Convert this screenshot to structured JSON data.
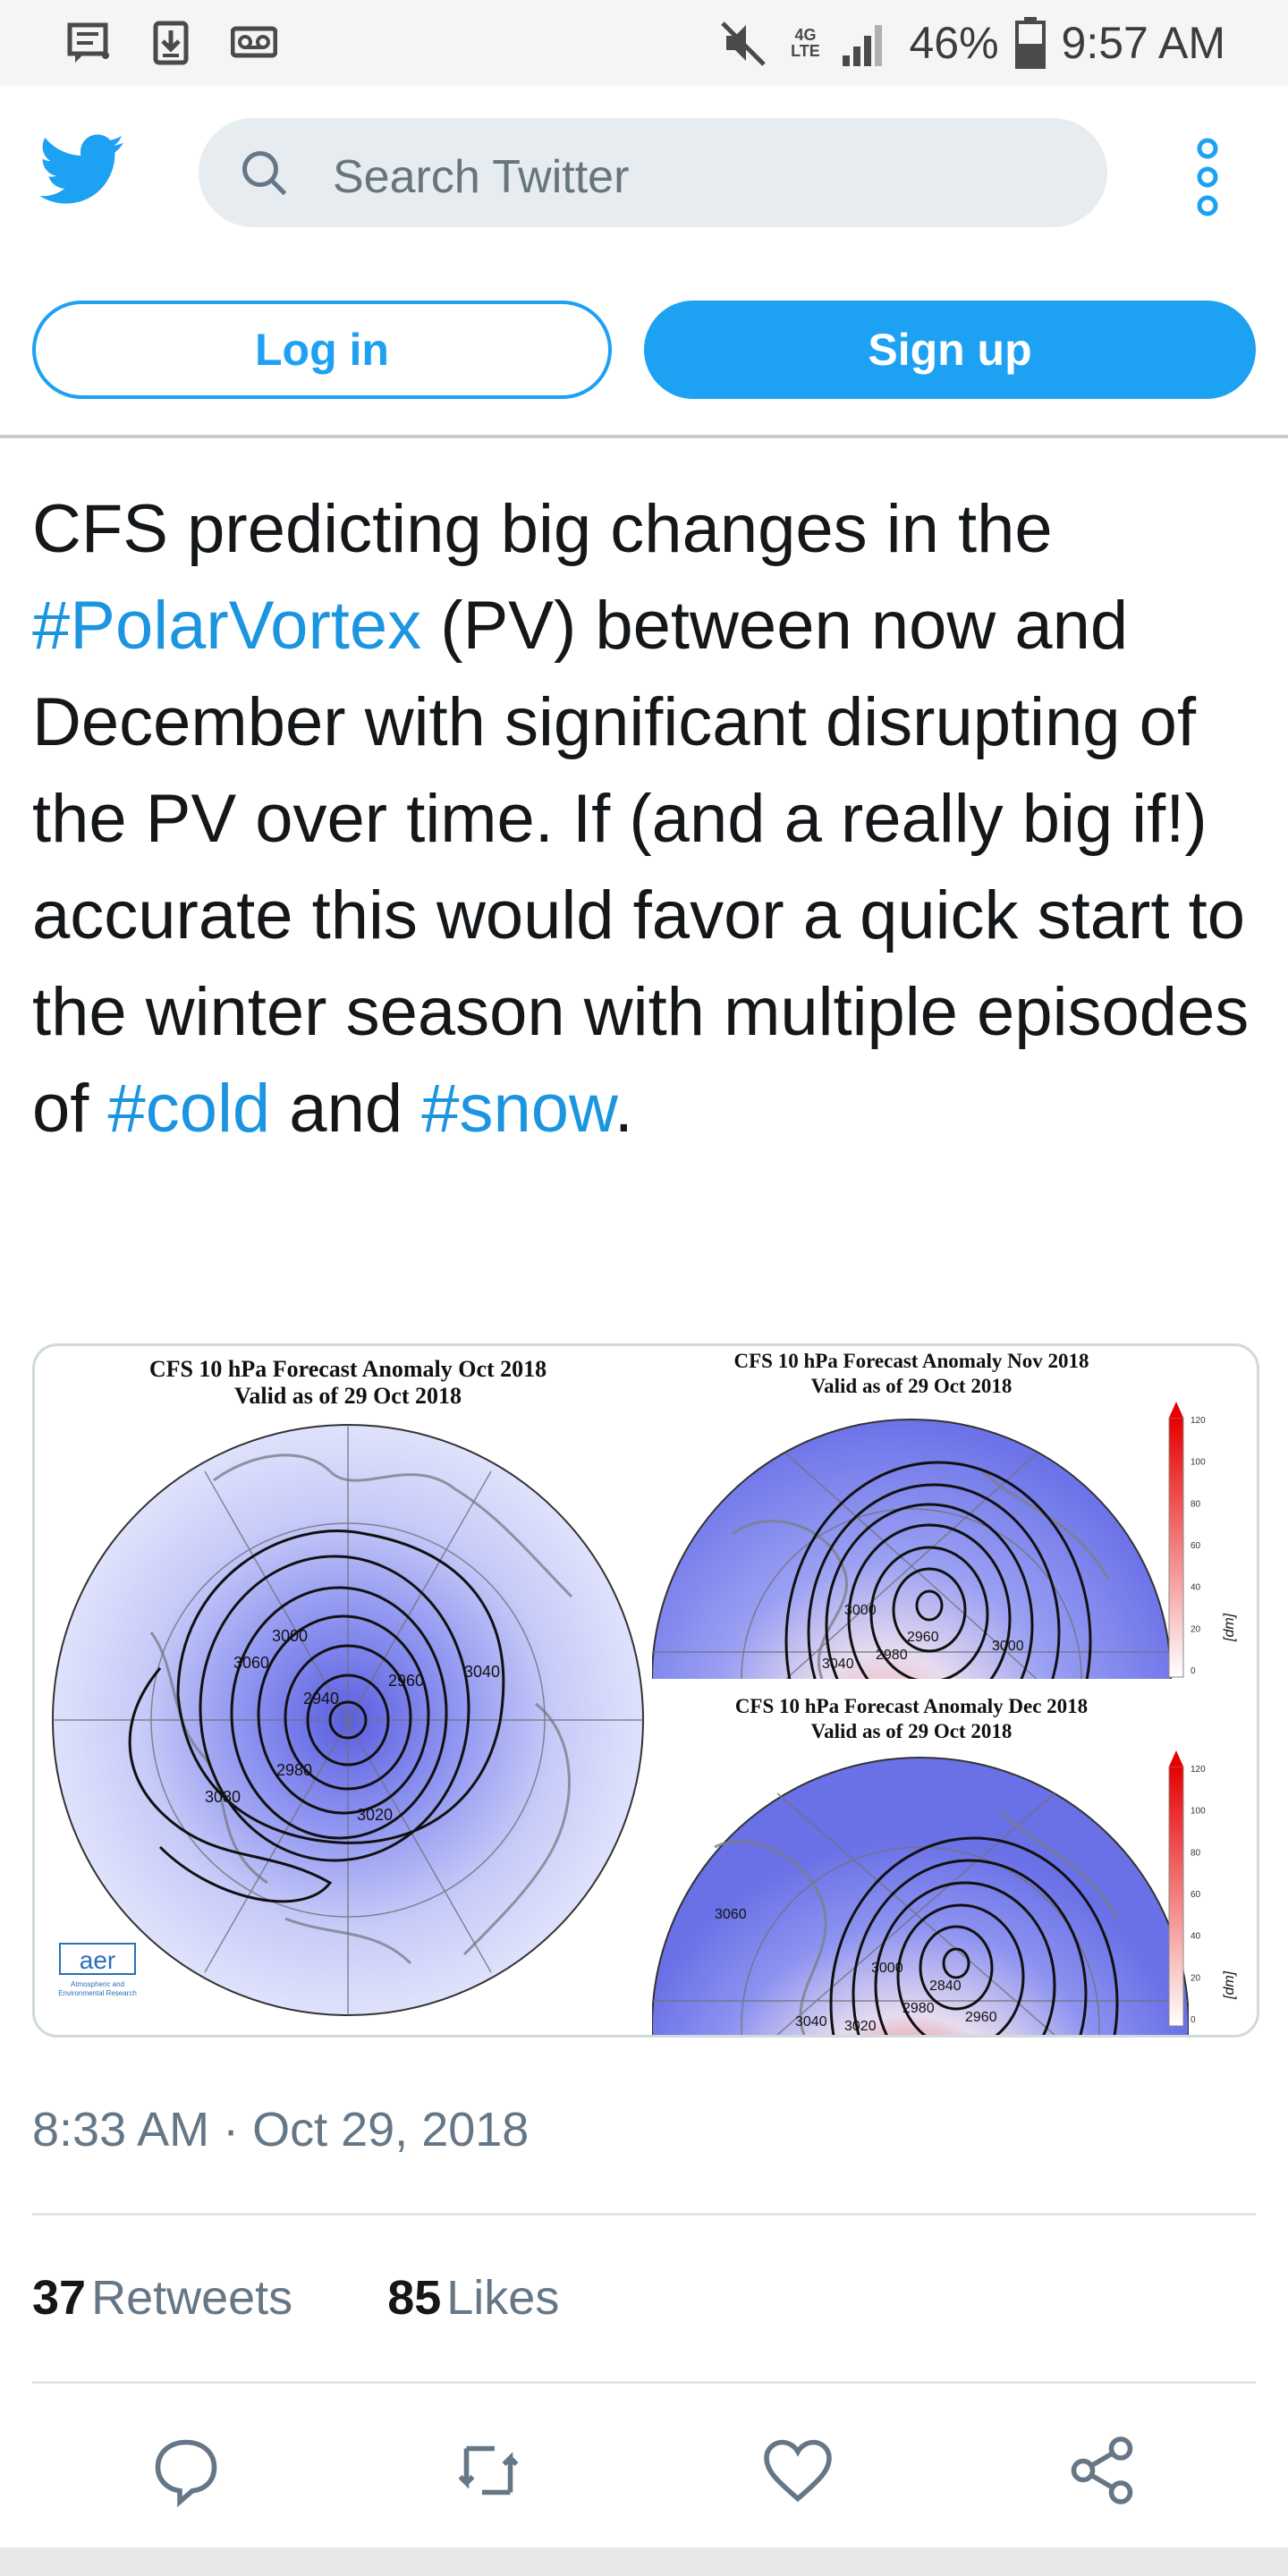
{
  "status_bar": {
    "battery": "46%",
    "time": "9:57 AM",
    "network_label": "4G LTE",
    "icons_left": [
      "message-icon",
      "download-icon",
      "voicemail-icon"
    ],
    "icons_right": [
      "mute-icon",
      "network-icon",
      "signal-icon",
      "battery-icon"
    ]
  },
  "header": {
    "search_placeholder": "Search Twitter",
    "icons": [
      "twitter-bird-icon",
      "search-icon",
      "more-vertical-icon"
    ]
  },
  "auth": {
    "login_label": "Log in",
    "signup_label": "Sign up"
  },
  "tweet": {
    "text_1": "CFS predicting big changes in the ",
    "tag_1": "#PolarVortex",
    "text_2": " (PV) between now and December with significant disrupting of the PV over time.  If (and a really big if!) accurate this would favor a quick start to the winter season with multiple episodes of ",
    "tag_2": "#cold",
    "text_3": " and ",
    "tag_3": "#snow",
    "text_4": ".",
    "media": {
      "left_title_1": "CFS 10 hPa Forecast Anomaly Oct 2018",
      "left_title_2": "Valid as of 29 Oct 2018",
      "top_right_title_1": "CFS 10 hPa Forecast Anomaly Nov 2018",
      "top_right_title_2": "Valid as of 29 Oct 2018",
      "bottom_right_title_1": "CFS 10 hPa Forecast Anomaly Dec 2018",
      "bottom_right_title_2": "Valid as of 29 Oct 2018",
      "logo": "aer",
      "logo_sub_1": "Atmospheric and",
      "logo_sub_2": "Environmental Research",
      "unit": "[dm]",
      "scale_ticks": [
        "120",
        "100",
        "80",
        "60",
        "40",
        "20",
        "0"
      ],
      "contour_labels_left": [
        "3060",
        "3000",
        "2940",
        "2960",
        "3040",
        "2980",
        "3080",
        "3020"
      ],
      "contour_labels_nov": [
        "3000",
        "2960",
        "2980",
        "3000",
        "3040"
      ],
      "contour_labels_dec": [
        "3060",
        "3000",
        "2840",
        "2980",
        "2960",
        "3040",
        "3020"
      ],
      "colors": {
        "low": "#5561e6",
        "high": "#ff2a2a",
        "neutral": "#eef0ff"
      }
    },
    "timestamp": "8:33 AM · Oct 29, 2018",
    "retweets_count": "37",
    "retweets_label": "Retweets",
    "likes_count": "85",
    "likes_label": "Likes",
    "action_icons": [
      "reply-icon",
      "retweet-icon",
      "like-icon",
      "share-icon"
    ]
  }
}
